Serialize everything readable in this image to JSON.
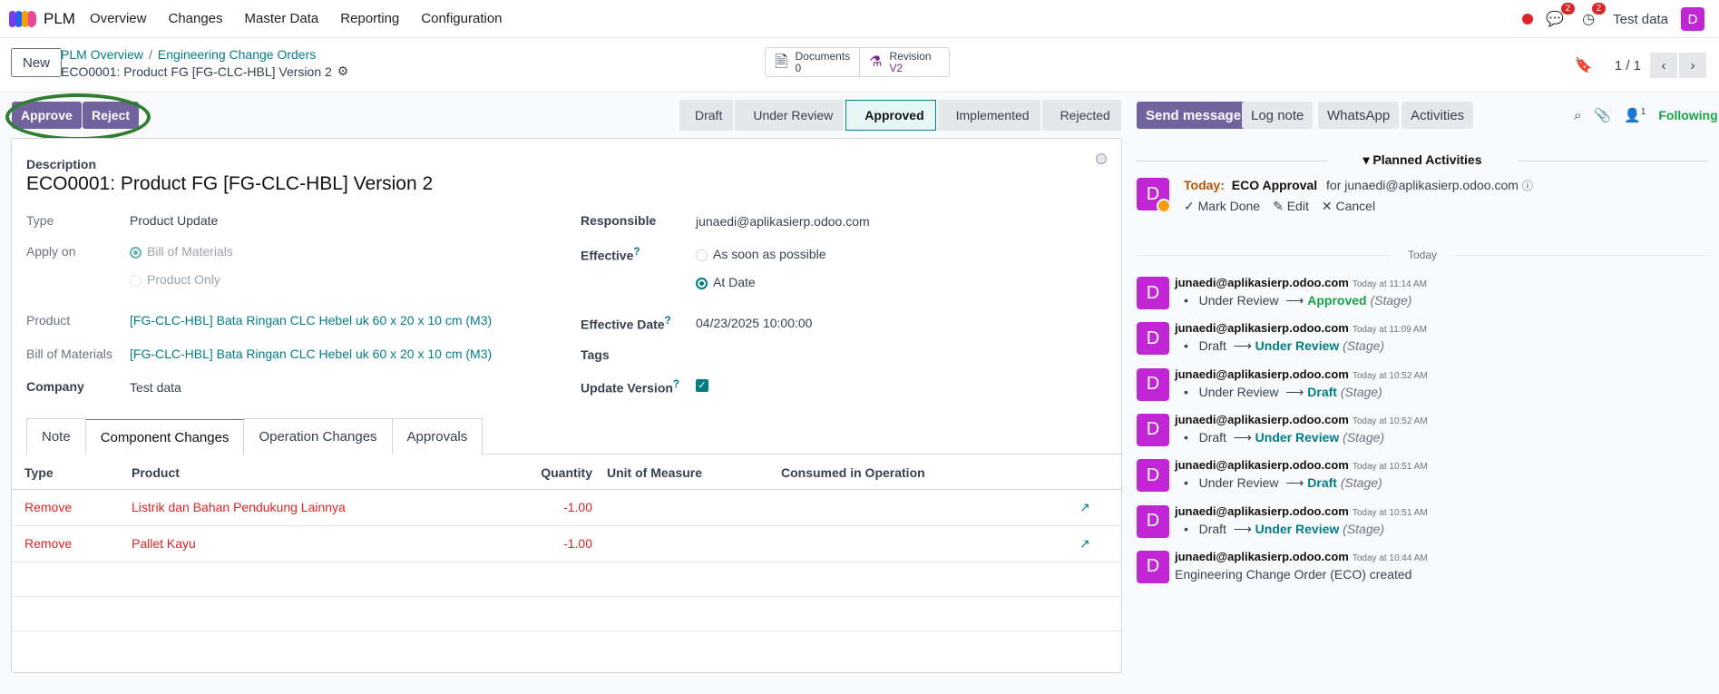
{
  "navbar": {
    "app": "PLM",
    "menus": [
      "Overview",
      "Changes",
      "Master Data",
      "Reporting",
      "Configuration"
    ],
    "chat_count": "2",
    "activity_count": "2",
    "company": "Test data",
    "avatar": "D"
  },
  "control": {
    "new": "New",
    "breadcrumb": [
      "PLM Overview",
      "Engineering Change Orders"
    ],
    "record": "ECO0001: Product FG [FG-CLC-HBL] Version 2",
    "smart": [
      {
        "label": "Documents",
        "value": "0"
      },
      {
        "label": "Revision",
        "value": "V2"
      }
    ],
    "pager": "1 / 1"
  },
  "actions": {
    "approve": "Approve",
    "reject": "Reject"
  },
  "stages": [
    "Draft",
    "Under Review",
    "Approved",
    "Implemented",
    "Rejected"
  ],
  "form": {
    "desc_label": "Description",
    "title": "ECO0001: Product FG [FG-CLC-HBL] Version 2",
    "type_label": "Type",
    "type": "Product Update",
    "apply_label": "Apply on",
    "apply_opts": [
      "Bill of Materials",
      "Product Only"
    ],
    "product_label": "Product",
    "product": "[FG-CLC-HBL] Bata Ringan CLC Hebel uk 60 x 20 x 10 cm (M3)",
    "bom_label": "Bill of Materials",
    "bom": "[FG-CLC-HBL] Bata Ringan CLC Hebel uk 60 x 20 x 10 cm (M3)",
    "company_label": "Company",
    "company": "Test data",
    "resp_label": "Responsible",
    "resp": "junaedi@aplikasierp.odoo.com",
    "eff_label": "Effective",
    "eff_opts": [
      "As soon as possible",
      "At Date"
    ],
    "effdate_label": "Effective Date",
    "effdate": "04/23/2025 10:00:00",
    "tags_label": "Tags",
    "updver_label": "Update Version",
    "q": "?"
  },
  "tabs": [
    "Note",
    "Component Changes",
    "Operation Changes",
    "Approvals"
  ],
  "table": {
    "headers": [
      "Type",
      "Product",
      "Quantity",
      "Unit of Measure",
      "Consumed in Operation"
    ],
    "rows": [
      {
        "type": "Remove",
        "product": "Listrik dan Bahan Pendukung Lainnya",
        "qty": "-1.00"
      },
      {
        "type": "Remove",
        "product": "Pallet Kayu",
        "qty": "-1.00"
      }
    ]
  },
  "chatter": {
    "send": "Send message",
    "log": "Log note",
    "wa": "WhatsApp",
    "activities": "Activities",
    "followers": "1",
    "following": "Following",
    "planned": "Planned Activities",
    "today": "Today:",
    "act_name": "ECO Approval",
    "act_for": "for junaedi@aplikasierp.odoo.com",
    "mark": "Mark Done",
    "edit": "Edit",
    "cancel": "Cancel",
    "sep": "Today",
    "messages": [
      {
        "author": "junaedi@aplikasierp.odoo.com",
        "time": "Today at 11:14 AM",
        "from": "Under Review",
        "to": "Approved",
        "stage": "(Stage)"
      },
      {
        "author": "junaedi@aplikasierp.odoo.com",
        "time": "Today at 11:09 AM",
        "from": "Draft",
        "to": "Under Review",
        "stage": "(Stage)"
      },
      {
        "author": "junaedi@aplikasierp.odoo.com",
        "time": "Today at 10:52 AM",
        "from": "Under Review",
        "to": "Draft",
        "stage": "(Stage)"
      },
      {
        "author": "junaedi@aplikasierp.odoo.com",
        "time": "Today at 10:52 AM",
        "from": "Draft",
        "to": "Under Review",
        "stage": "(Stage)"
      },
      {
        "author": "junaedi@aplikasierp.odoo.com",
        "time": "Today at 10:51 AM",
        "from": "Under Review",
        "to": "Draft",
        "stage": "(Stage)"
      },
      {
        "author": "junaedi@aplikasierp.odoo.com",
        "time": "Today at 10:51 AM",
        "from": "Draft",
        "to": "Under Review",
        "stage": "(Stage)"
      },
      {
        "author": "junaedi@aplikasierp.odoo.com",
        "time": "Today at 10:44 AM",
        "text": "Engineering Change Order (ECO) created"
      }
    ]
  }
}
